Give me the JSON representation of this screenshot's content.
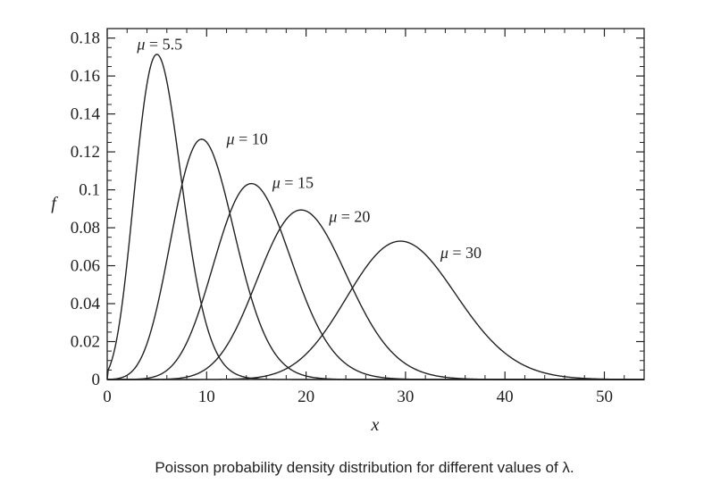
{
  "chart_data": {
    "type": "line",
    "title": "",
    "xlabel": "x",
    "ylabel": "f",
    "xlim": [
      0,
      54
    ],
    "ylim": [
      0,
      0.185
    ],
    "x_ticks": [
      0,
      10,
      20,
      30,
      40,
      50
    ],
    "x_tick_labels": [
      "0",
      "10",
      "20",
      "30",
      "40",
      "50"
    ],
    "y_ticks": [
      0,
      0.02,
      0.04,
      0.06,
      0.08,
      0.1,
      0.12,
      0.14,
      0.16,
      0.18
    ],
    "y_tick_labels": [
      "0",
      "0.02",
      "0.04",
      "0.06",
      "0.08",
      "0.1",
      "0.12",
      "0.14",
      "0.16",
      "0.18"
    ],
    "grid": false,
    "legend": "none",
    "series": [
      {
        "mu": 5.5,
        "label_var": "μ",
        "label_eq": " = ",
        "label_val": "5.5",
        "label_at": [
          3.0,
          0.174
        ]
      },
      {
        "mu": 10,
        "label_var": "μ",
        "label_eq": " = ",
        "label_val": "10",
        "label_at": [
          12.0,
          0.124
        ]
      },
      {
        "mu": 15,
        "label_var": "μ",
        "label_eq": " = ",
        "label_val": "15",
        "label_at": [
          16.6,
          0.101
        ]
      },
      {
        "mu": 20,
        "label_var": "μ",
        "label_eq": " = ",
        "label_val": "20",
        "label_at": [
          22.3,
          0.083
        ]
      },
      {
        "mu": 30,
        "label_var": "μ",
        "label_eq": " = ",
        "label_val": "30",
        "label_at": [
          33.5,
          0.064
        ]
      }
    ]
  },
  "caption": "Poisson probability density distribution for different values of λ."
}
